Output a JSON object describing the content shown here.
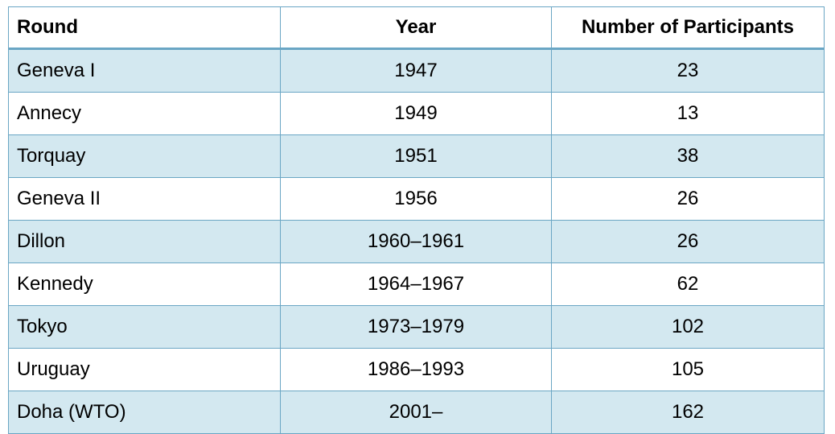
{
  "table": {
    "headers": [
      "Round",
      "Year",
      "Number of Participants"
    ],
    "rows": [
      [
        "Geneva I",
        "1947",
        "23"
      ],
      [
        "Annecy",
        "1949",
        "13"
      ],
      [
        "Torquay",
        "1951",
        "38"
      ],
      [
        "Geneva II",
        "1956",
        "26"
      ],
      [
        "Dillon",
        "1960–1961",
        "26"
      ],
      [
        "Kennedy",
        "1964–1967",
        "62"
      ],
      [
        "Tokyo",
        "1973–1979",
        "102"
      ],
      [
        "Uruguay",
        "1986–1993",
        "105"
      ],
      [
        "Doha (WTO)",
        "2001–",
        "162"
      ]
    ]
  },
  "colors": {
    "row_shade": "#d3e8f0",
    "row_plain": "#ffffff",
    "border": "#6aa6c4"
  }
}
